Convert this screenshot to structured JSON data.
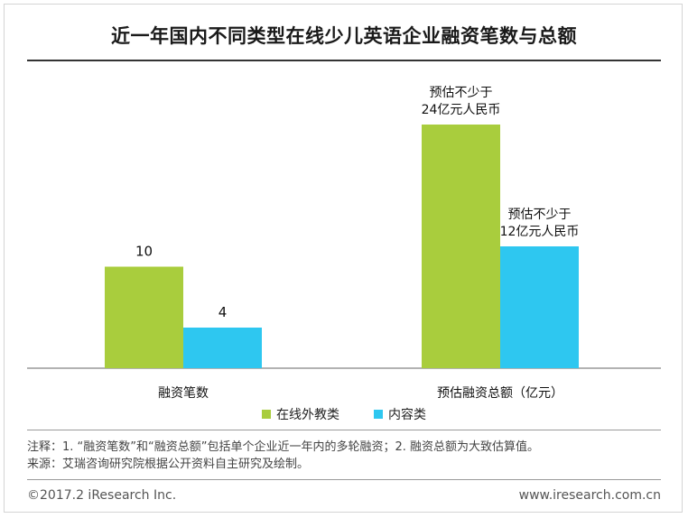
{
  "title": "近一年国内不同类型在线少儿英语企业融资笔数与总额",
  "chart_data": {
    "type": "bar",
    "categories": [
      "融资笔数",
      "预估融资总额（亿元）"
    ],
    "series": [
      {
        "name": "在线外教类",
        "values": [
          10,
          24
        ],
        "color": "#a9cd3d"
      },
      {
        "name": "内容类",
        "values": [
          4,
          12
        ],
        "color": "#2ec7f0"
      }
    ],
    "data_labels": [
      [
        "10",
        "预估不少于\n24亿元人民币"
      ],
      [
        "4",
        "预估不少于\n12亿元人民币"
      ]
    ],
    "grid": false,
    "legend_position": "bottom"
  },
  "notes": {
    "line1": "注释：1. “融资笔数”和“融资总额”包括单个企业近一年内的多轮融资；2. 融资总额为大致估算值。",
    "line2": "来源：艾瑞咨询研究院根据公开资料自主研究及绘制。"
  },
  "footer": {
    "copyright": "©2017.2 iResearch Inc.",
    "website": "www.iresearch.com.cn"
  }
}
